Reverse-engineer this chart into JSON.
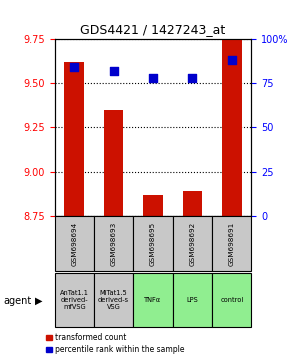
{
  "title": "GDS4421 / 1427243_at",
  "samples": [
    "GSM698694",
    "GSM698693",
    "GSM698695",
    "GSM698692",
    "GSM698691"
  ],
  "agents": [
    "AnTat1.1\nderived-\nmfVSG",
    "MiTat1.5\nderived-s\nVSG",
    "TNFα",
    "LPS",
    "control"
  ],
  "agent_colors": [
    "#c8c8c8",
    "#c8c8c8",
    "#90ee90",
    "#90ee90",
    "#90ee90"
  ],
  "red_values": [
    9.62,
    9.35,
    8.87,
    8.89,
    9.75
  ],
  "blue_values": [
    84,
    82,
    78,
    78,
    88
  ],
  "ylim_left": [
    8.75,
    9.75
  ],
  "ylim_right": [
    0,
    100
  ],
  "yticks_left": [
    8.75,
    9.0,
    9.25,
    9.5,
    9.75
  ],
  "yticks_right": [
    0,
    25,
    50,
    75,
    100
  ],
  "bar_width": 0.5,
  "bar_bottom": 8.75,
  "red_color": "#cc1100",
  "blue_color": "#0000cc",
  "sample_box_color": "#c8c8c8",
  "legend_red": "transformed count",
  "legend_blue": "percentile rank within the sample"
}
